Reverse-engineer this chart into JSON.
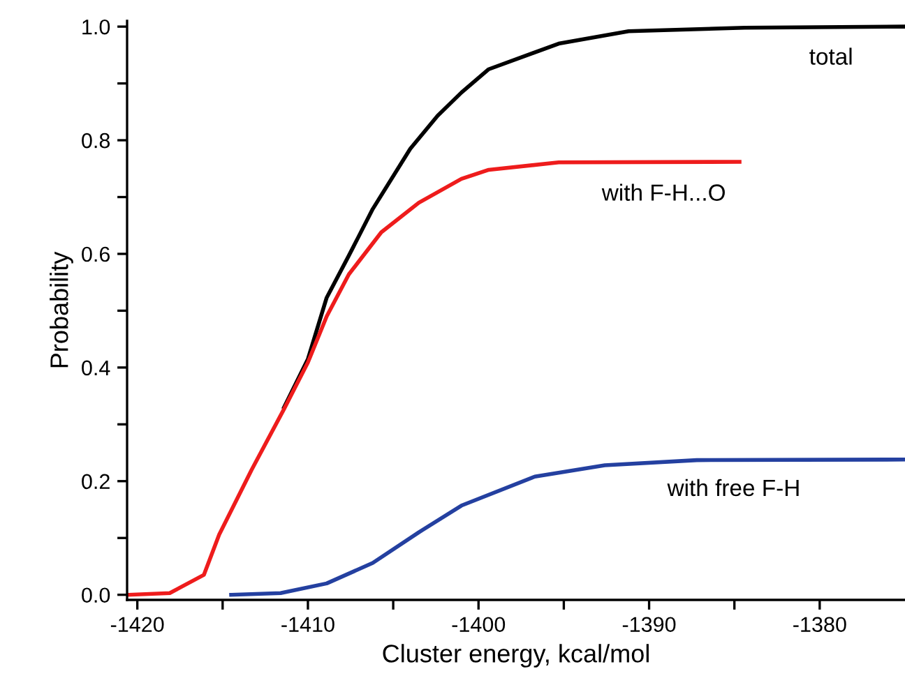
{
  "chart_data": {
    "type": "line",
    "xlabel": "Cluster energy, kcal/mol",
    "ylabel": "Probability",
    "xlim": [
      -1420.6,
      -1375
    ],
    "ylim": [
      -0.009,
      1.01
    ],
    "xticks": [
      -1420,
      {
        "value": -1415,
        "label": null
      },
      -1410,
      {
        "value": -1405,
        "label": null
      },
      -1400,
      {
        "value": -1395,
        "label": null
      },
      -1390,
      {
        "value": -1385,
        "label": null
      },
      -1380
    ],
    "yticks": [
      {
        "value": 0.0,
        "label": "0.0"
      },
      {
        "value": 0.1,
        "label": null
      },
      {
        "value": 0.2,
        "label": "0.2"
      },
      {
        "value": 0.3,
        "label": null
      },
      {
        "value": 0.4,
        "label": "0.4"
      },
      {
        "value": 0.5,
        "label": null
      },
      {
        "value": 0.6,
        "label": "0.6"
      },
      {
        "value": 0.7,
        "label": null
      },
      {
        "value": 0.8,
        "label": "0.8"
      },
      {
        "value": 0.9,
        "label": null
      },
      {
        "value": 1.0,
        "label": "1.0"
      }
    ],
    "grid": false,
    "legend": false,
    "marker": "none",
    "line_style": "solid",
    "series": [
      {
        "name": "total",
        "color": "#000000",
        "x": [
          -1411.4,
          -1410.0,
          -1408.9,
          -1407.6,
          -1406.2,
          -1404.0,
          -1402.4,
          -1401.0,
          -1399.4,
          -1395.3,
          -1391.2,
          -1384.4,
          -1375.1
        ],
        "values": [
          0.33,
          0.415,
          0.523,
          0.597,
          0.679,
          0.785,
          0.843,
          0.884,
          0.925,
          0.97,
          0.992,
          0.998,
          1.0
        ]
      },
      {
        "name": "with F-H...O",
        "color": "#ee1c1c",
        "x": [
          -1420.5,
          -1418.1,
          -1416.1,
          -1415.2,
          -1413.3,
          -1411.4,
          -1410.0,
          -1408.9,
          -1407.6,
          -1405.7,
          -1403.5,
          -1401.0,
          -1399.4,
          -1395.3,
          -1384.7
        ],
        "values": [
          0.0,
          0.003,
          0.035,
          0.106,
          0.22,
          0.327,
          0.409,
          0.49,
          0.564,
          0.638,
          0.69,
          0.732,
          0.748,
          0.761,
          0.762
        ]
      },
      {
        "name": "with free F-H",
        "color": "#2440a0",
        "x": [
          -1414.5,
          -1411.6,
          -1408.9,
          -1406.2,
          -1403.5,
          -1401.0,
          -1396.7,
          -1392.6,
          -1387.2,
          -1375.1
        ],
        "values": [
          0.0,
          0.003,
          0.02,
          0.056,
          0.11,
          0.157,
          0.208,
          0.228,
          0.237,
          0.238
        ]
      }
    ]
  }
}
